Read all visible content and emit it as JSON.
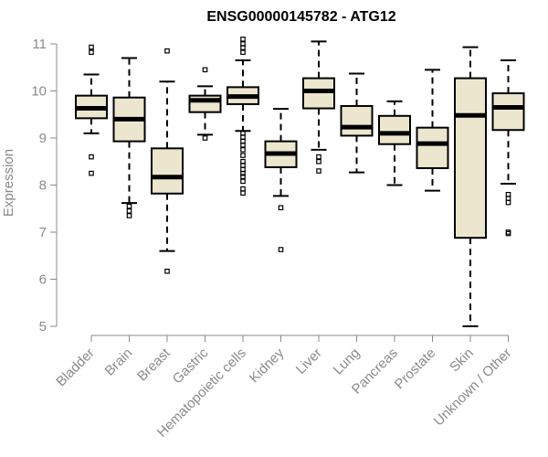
{
  "chart_data": {
    "type": "boxplot",
    "title": "ENSG00000145782 - ATG12",
    "ylabel": "Expression",
    "xlabel": "",
    "ylim": [
      5,
      11
    ],
    "yticks": [
      5,
      6,
      7,
      8,
      9,
      10,
      11
    ],
    "box_fill": "#ede6cf",
    "categories": [
      "Bladder",
      "Brain",
      "Breast",
      "Gastric",
      "Hematopoietic cells",
      "Kidney",
      "Liver",
      "Lung",
      "Pancreas",
      "Prostate",
      "Skin",
      "Unknown / Other"
    ],
    "boxes": [
      {
        "category": "Bladder",
        "whisker_low": 9.1,
        "q1": 9.42,
        "median": 9.63,
        "q3": 9.9,
        "whisker_high": 10.35,
        "outliers": [
          10.93,
          10.82,
          8.6,
          8.25
        ]
      },
      {
        "category": "Brain",
        "whisker_low": 7.62,
        "q1": 8.93,
        "median": 9.4,
        "q3": 9.86,
        "whisker_high": 10.7,
        "outliers": [
          7.55,
          7.45,
          7.35
        ]
      },
      {
        "category": "Breast",
        "whisker_low": 6.6,
        "q1": 7.82,
        "median": 8.17,
        "q3": 8.78,
        "whisker_high": 10.2,
        "outliers": [
          10.85,
          6.17
        ]
      },
      {
        "category": "Gastric",
        "whisker_low": 9.07,
        "q1": 9.55,
        "median": 9.8,
        "q3": 9.9,
        "whisker_high": 10.1,
        "outliers": [
          10.45,
          9.0
        ]
      },
      {
        "category": "Hematopoietic cells",
        "whisker_low": 9.15,
        "q1": 9.72,
        "median": 9.88,
        "q3": 10.08,
        "whisker_high": 10.65,
        "outliers": [
          11.1,
          11.0,
          10.92,
          10.82,
          9.1,
          9.02,
          8.93,
          8.85,
          8.75,
          8.63,
          8.5,
          8.42,
          8.33,
          8.25,
          8.18,
          8.08,
          7.92,
          7.83
        ]
      },
      {
        "category": "Kidney",
        "whisker_low": 7.77,
        "q1": 8.38,
        "median": 8.67,
        "q3": 8.93,
        "whisker_high": 9.62,
        "outliers": [
          7.52,
          6.63
        ]
      },
      {
        "category": "Liver",
        "whisker_low": 8.75,
        "q1": 9.63,
        "median": 10.0,
        "q3": 10.27,
        "whisker_high": 11.05,
        "outliers": [
          8.6,
          8.5,
          8.3
        ]
      },
      {
        "category": "Lung",
        "whisker_low": 8.27,
        "q1": 9.05,
        "median": 9.23,
        "q3": 9.68,
        "whisker_high": 10.37,
        "outliers": []
      },
      {
        "category": "Pancreas",
        "whisker_low": 8.0,
        "q1": 8.87,
        "median": 9.1,
        "q3": 9.47,
        "whisker_high": 9.78,
        "outliers": []
      },
      {
        "category": "Prostate",
        "whisker_low": 7.88,
        "q1": 8.36,
        "median": 8.88,
        "q3": 9.22,
        "whisker_high": 10.45,
        "outliers": []
      },
      {
        "category": "Skin",
        "whisker_low": 5.0,
        "q1": 6.88,
        "median": 9.48,
        "q3": 10.27,
        "whisker_high": 10.93,
        "outliers": []
      },
      {
        "category": "Unknown / Other",
        "whisker_low": 8.03,
        "q1": 9.17,
        "median": 9.65,
        "q3": 9.95,
        "whisker_high": 10.65,
        "outliers": [
          7.8,
          7.72,
          7.63,
          7.0,
          6.97
        ]
      }
    ]
  }
}
